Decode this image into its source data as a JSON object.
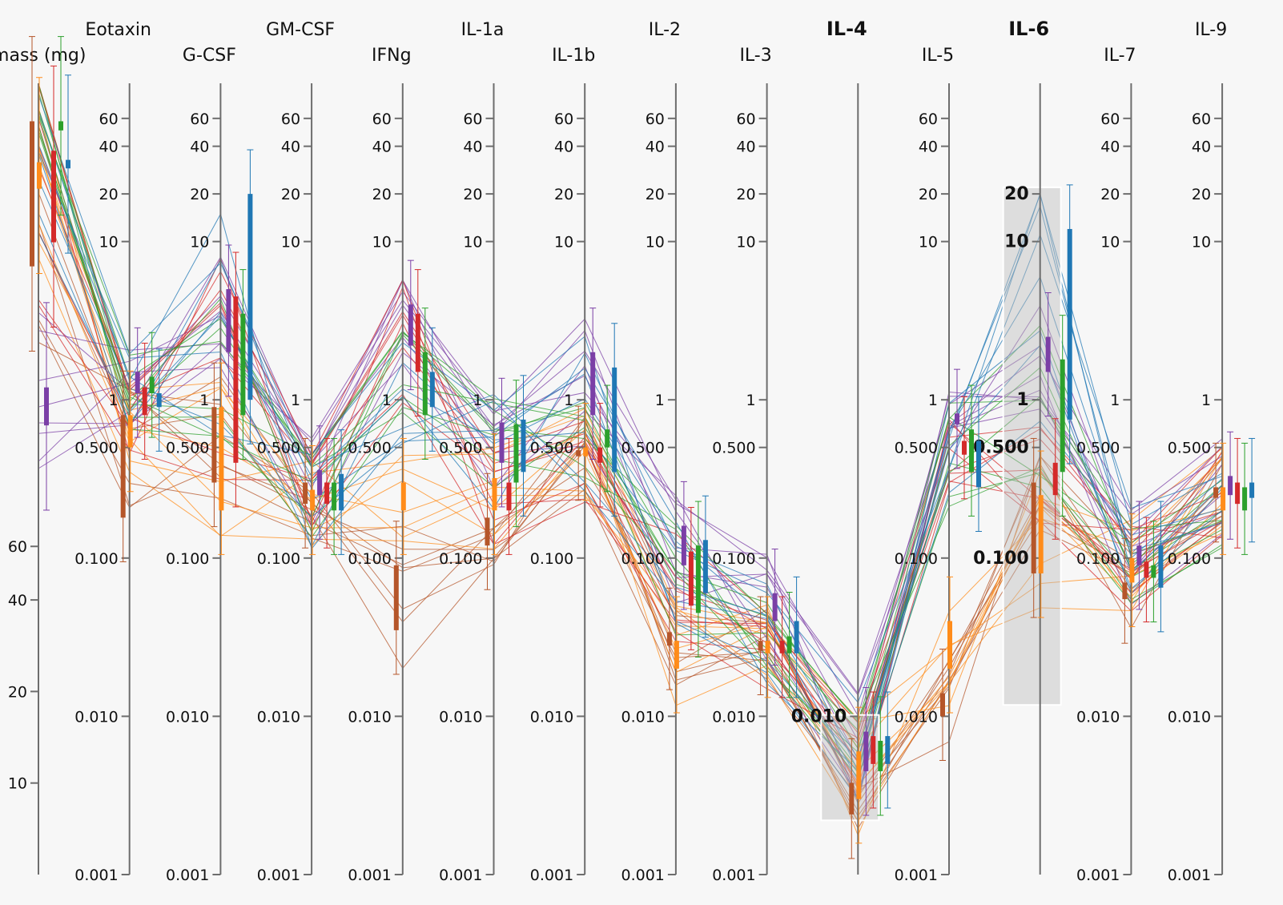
{
  "chart_data": {
    "type": "parallel-coordinates",
    "dimensions": [
      {
        "name": "Tumor mass (mg)",
        "label": "or mass (mg)",
        "scale": "log",
        "ticks": [
          "60",
          "40",
          "20",
          "10"
        ],
        "tickValues": [
          60,
          40,
          20,
          10
        ],
        "domain": [
          5,
          2000
        ]
      },
      {
        "name": "Eotaxin",
        "label": "Eotaxin",
        "scale": "log",
        "ticks": [
          "60",
          "40",
          "20",
          "10",
          "1",
          "0.500",
          "0.100",
          "0.010",
          "0.001"
        ],
        "tickValues": [
          60,
          40,
          20,
          10,
          1,
          0.5,
          0.1,
          0.01,
          0.001
        ],
        "domain": [
          0.001,
          100
        ]
      },
      {
        "name": "G-CSF",
        "label": "G-CSF",
        "scale": "log",
        "ticks": [
          "60",
          "40",
          "20",
          "10",
          "1",
          "0.500",
          "0.100",
          "0.010",
          "0.001"
        ],
        "tickValues": [
          60,
          40,
          20,
          10,
          1,
          0.5,
          0.1,
          0.01,
          0.001
        ],
        "domain": [
          0.001,
          100
        ]
      },
      {
        "name": "GM-CSF",
        "label": "GM-CSF",
        "scale": "log",
        "ticks": [
          "60",
          "40",
          "20",
          "10",
          "1",
          "0.500",
          "0.100",
          "0.010",
          "0.001"
        ],
        "tickValues": [
          60,
          40,
          20,
          10,
          1,
          0.5,
          0.1,
          0.01,
          0.001
        ],
        "domain": [
          0.001,
          100
        ]
      },
      {
        "name": "IFNg",
        "label": "IFNg",
        "scale": "log",
        "ticks": [
          "60",
          "40",
          "20",
          "10",
          "1",
          "0.500",
          "0.100",
          "0.010",
          "0.001"
        ],
        "tickValues": [
          60,
          40,
          20,
          10,
          1,
          0.5,
          0.1,
          0.01,
          0.001
        ],
        "domain": [
          0.001,
          100
        ]
      },
      {
        "name": "IL-1a",
        "label": "IL-1a",
        "scale": "log",
        "ticks": [
          "60",
          "40",
          "20",
          "10",
          "1",
          "0.500",
          "0.100",
          "0.010",
          "0.001"
        ],
        "tickValues": [
          60,
          40,
          20,
          10,
          1,
          0.5,
          0.1,
          0.01,
          0.001
        ],
        "domain": [
          0.001,
          100
        ]
      },
      {
        "name": "IL-1b",
        "label": "IL-1b",
        "scale": "log",
        "ticks": [
          "60",
          "40",
          "20",
          "10",
          "1",
          "0.500",
          "0.100",
          "0.010",
          "0.001"
        ],
        "tickValues": [
          60,
          40,
          20,
          10,
          1,
          0.5,
          0.1,
          0.01,
          0.001
        ],
        "domain": [
          0.001,
          100
        ]
      },
      {
        "name": "IL-2",
        "label": "IL-2",
        "scale": "log",
        "ticks": [
          "60",
          "40",
          "20",
          "10",
          "1",
          "0.500",
          "0.100",
          "0.010",
          "0.001"
        ],
        "tickValues": [
          60,
          40,
          20,
          10,
          1,
          0.5,
          0.1,
          0.01,
          0.001
        ],
        "domain": [
          0.001,
          100
        ]
      },
      {
        "name": "IL-3",
        "label": "IL-3",
        "scale": "log",
        "ticks": [
          "60",
          "40",
          "20",
          "10",
          "1",
          "0.500",
          "0.100",
          "0.010",
          "0.001"
        ],
        "tickValues": [
          60,
          40,
          20,
          10,
          1,
          0.5,
          0.1,
          0.01,
          0.001
        ],
        "domain": [
          0.001,
          100
        ]
      },
      {
        "name": "IL-4",
        "label": "IL-4",
        "bold": true,
        "scale": "log",
        "ticks": [
          "0.010"
        ],
        "tickValues": [
          0.01
        ],
        "domain": [
          0.001,
          100
        ],
        "brush": [
          0.0022,
          0.0102
        ]
      },
      {
        "name": "IL-5",
        "label": "IL-5",
        "scale": "log",
        "ticks": [
          "60",
          "40",
          "20",
          "10",
          "1",
          "0.500",
          "0.100",
          "0.010",
          "0.001"
        ],
        "tickValues": [
          60,
          40,
          20,
          10,
          1,
          0.5,
          0.1,
          0.01,
          0.001
        ],
        "domain": [
          0.001,
          100
        ]
      },
      {
        "name": "IL-6",
        "label": "IL-6",
        "bold": true,
        "scale": "log",
        "ticks": [
          "20",
          "10",
          "1",
          "0.500",
          "0.100"
        ],
        "tickValues": [
          20,
          10,
          1,
          0.5,
          0.1
        ],
        "domain": [
          0.001,
          100
        ],
        "brush": [
          0.0118,
          22
        ]
      },
      {
        "name": "IL-7",
        "label": "IL-7",
        "scale": "log",
        "ticks": [
          "60",
          "40",
          "20",
          "10",
          "1",
          "0.500",
          "0.100",
          "0.010",
          "0.001"
        ],
        "tickValues": [
          60,
          40,
          20,
          10,
          1,
          0.5,
          0.1,
          0.01,
          0.001
        ],
        "domain": [
          0.001,
          100
        ]
      },
      {
        "name": "IL-9",
        "label": "IL-9",
        "scale": "log",
        "ticks": [
          "60",
          "40",
          "20",
          "10",
          "1",
          "0.500",
          "0.100",
          "0.010",
          "0.001"
        ],
        "tickValues": [
          60,
          40,
          20,
          10,
          1,
          0.5,
          0.1,
          0.01,
          0.001
        ],
        "domain": [
          0.001,
          100
        ]
      }
    ],
    "groups": [
      {
        "color": "#b5562a",
        "boxes": [
          [
            500,
            1500
          ],
          [
            0.18,
            0.8
          ],
          [
            0.3,
            0.9
          ],
          [
            0.22,
            0.3
          ],
          [
            0.035,
            0.09
          ],
          [
            0.12,
            0.18
          ],
          [
            0.44,
            0.48
          ],
          [
            0.028,
            0.034
          ],
          [
            0.026,
            0.03
          ],
          [
            0.0024,
            0.0038
          ],
          [
            0.01,
            0.014
          ],
          [
            0.08,
            0.3
          ],
          [
            0.055,
            0.07
          ],
          [
            0.24,
            0.28
          ]
        ]
      },
      {
        "color": "#ff8c1a",
        "boxes": [
          [
            900,
            1100
          ],
          [
            0.5,
            0.8
          ],
          [
            0.2,
            0.9
          ],
          [
            0.2,
            0.27
          ],
          [
            0.2,
            0.3
          ],
          [
            0.2,
            0.32
          ],
          [
            0.44,
            0.5
          ],
          [
            0.02,
            0.03
          ],
          [
            0.025,
            0.03
          ],
          [
            0.003,
            0.006
          ],
          [
            0.02,
            0.04
          ],
          [
            0.08,
            0.25
          ],
          [
            0.07,
            0.1
          ],
          [
            0.2,
            0.28
          ]
        ]
      },
      {
        "color": "#7b3fa6",
        "boxes": [
          [
            150,
            200
          ],
          [
            1.1,
            1.5
          ],
          [
            2,
            5
          ],
          [
            0.25,
            0.36
          ],
          [
            2.2,
            4
          ],
          [
            0.4,
            0.72
          ],
          [
            0.8,
            2
          ],
          [
            0.09,
            0.16
          ],
          [
            0.04,
            0.06
          ],
          [
            0.0045,
            0.008
          ],
          [
            0.7,
            0.82
          ],
          [
            1.5,
            2.5
          ],
          [
            0.09,
            0.12
          ],
          [
            0.25,
            0.33
          ]
        ]
      },
      {
        "color": "#d42a2a",
        "boxes": [
          [
            600,
            1200
          ],
          [
            0.8,
            1.2
          ],
          [
            0.4,
            4.5
          ],
          [
            0.22,
            0.3
          ],
          [
            1.5,
            3.5
          ],
          [
            0.2,
            0.3
          ],
          [
            0.4,
            0.5
          ],
          [
            0.05,
            0.11
          ],
          [
            0.025,
            0.03
          ],
          [
            0.005,
            0.0075
          ],
          [
            0.45,
            0.55
          ],
          [
            0.25,
            0.4
          ],
          [
            0.075,
            0.095
          ],
          [
            0.22,
            0.3
          ]
        ]
      },
      {
        "color": "#2ca02c",
        "boxes": [
          [
            1400,
            1500
          ],
          [
            1.1,
            1.4
          ],
          [
            0.8,
            3.5
          ],
          [
            0.2,
            0.3
          ],
          [
            0.8,
            2
          ],
          [
            0.3,
            0.7
          ],
          [
            0.5,
            0.65
          ],
          [
            0.045,
            0.12
          ],
          [
            0.025,
            0.032
          ],
          [
            0.0045,
            0.007
          ],
          [
            0.35,
            0.65
          ],
          [
            0.35,
            1.8
          ],
          [
            0.075,
            0.09
          ],
          [
            0.2,
            0.28
          ]
        ]
      },
      {
        "color": "#1f77b4",
        "boxes": [
          [
            1050,
            1120
          ],
          [
            0.9,
            1.1
          ],
          [
            1,
            20
          ],
          [
            0.2,
            0.34
          ],
          [
            0.9,
            1.5
          ],
          [
            0.35,
            0.75
          ],
          [
            0.35,
            1.6
          ],
          [
            0.06,
            0.13
          ],
          [
            0.025,
            0.04
          ],
          [
            0.005,
            0.0075
          ],
          [
            0.28,
            0.55
          ],
          [
            0.75,
            12
          ],
          [
            0.065,
            0.12
          ],
          [
            0.24,
            0.3
          ]
        ]
      }
    ]
  }
}
